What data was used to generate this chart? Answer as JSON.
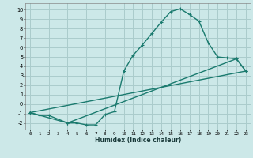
{
  "xlabel": "Humidex (Indice chaleur)",
  "bg_color": "#cce8e8",
  "grid_color": "#aacccc",
  "line_color": "#1a7a6e",
  "xlim": [
    -0.5,
    23.5
  ],
  "ylim": [
    -2.7,
    10.7
  ],
  "xticks": [
    0,
    1,
    2,
    3,
    4,
    5,
    6,
    7,
    8,
    9,
    10,
    11,
    12,
    13,
    14,
    15,
    16,
    17,
    18,
    19,
    20,
    21,
    22,
    23
  ],
  "yticks": [
    -2,
    -1,
    0,
    1,
    2,
    3,
    4,
    5,
    6,
    7,
    8,
    9,
    10
  ],
  "series1_x": [
    0,
    1,
    2,
    4,
    5,
    6,
    7,
    8,
    9,
    10,
    11,
    12,
    13,
    14,
    15,
    16,
    17,
    18,
    19,
    20,
    21,
    22,
    23
  ],
  "series1_y": [
    -0.9,
    -1.2,
    -1.2,
    -2.0,
    -2.0,
    -2.2,
    -2.2,
    -1.1,
    -0.8,
    3.5,
    5.2,
    6.3,
    7.5,
    8.7,
    9.8,
    10.1,
    9.5,
    8.8,
    6.5,
    5.0,
    4.9,
    4.8,
    3.5
  ],
  "series2_x": [
    0,
    4,
    22,
    23
  ],
  "series2_y": [
    -0.9,
    -2.0,
    4.8,
    3.5
  ],
  "series3_x": [
    0,
    23
  ],
  "series3_y": [
    -0.9,
    3.5
  ],
  "marker": "+",
  "markersize": 3.5,
  "linewidth": 1.0
}
